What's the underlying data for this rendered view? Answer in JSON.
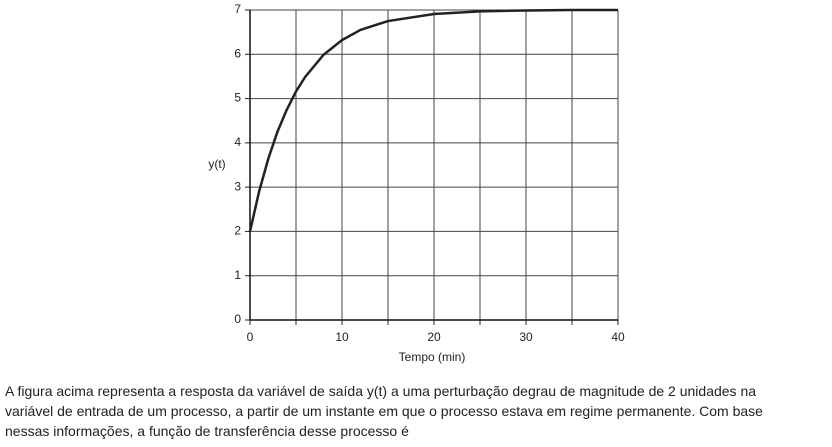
{
  "chart_data": {
    "type": "line",
    "x_label": "Tempo (min)",
    "y_label": "y(t)",
    "x": [
      0,
      1,
      2,
      3,
      4,
      5,
      6,
      8,
      10,
      12,
      15,
      20,
      25,
      30,
      35,
      40
    ],
    "values": [
      2,
      2.91,
      3.65,
      4.26,
      4.75,
      5.16,
      5.49,
      5.99,
      6.32,
      6.55,
      6.75,
      6.91,
      6.97,
      6.99,
      7,
      7
    ],
    "color": "#222222",
    "xlim": [
      0,
      40
    ],
    "xticks": [
      0,
      10,
      20,
      30,
      40
    ],
    "x_minor_grid": [
      5,
      15,
      25,
      35
    ],
    "ylim": [
      0,
      7
    ],
    "yticks": [
      0,
      1,
      2,
      3,
      4,
      5,
      6,
      7
    ],
    "grid": true
  },
  "paragraph": [
    "A figura acima representa a resposta da variável de saída y(t) a uma perturbação degrau de magnitude de 2 unidades na",
    "variável de entrada de um processo, a partir de um instante em que o processo estava em regime permanente. Com base",
    "nessas informações, a função de transferência desse processo é"
  ]
}
